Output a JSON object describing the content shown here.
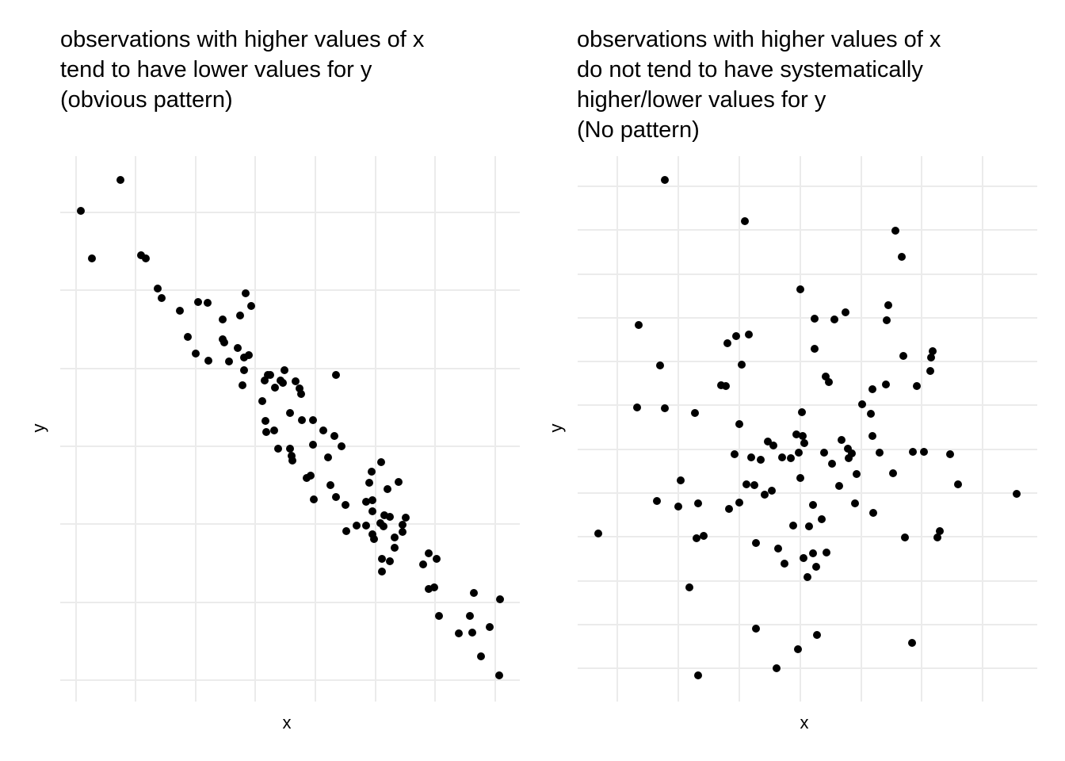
{
  "chart_data": [
    {
      "type": "scatter",
      "title": [
        "observations with higher values of x",
        "tend to have lower values for y",
        "(obvious pattern)"
      ],
      "xlabel": "x",
      "ylabel": "y",
      "color": "#000000",
      "grid": true,
      "xlim": [
        -20,
        560
      ],
      "ylim": [
        -27,
        661
      ],
      "xticks": [
        0,
        75,
        151,
        226,
        302,
        378,
        453,
        529
      ],
      "yticks": [
        0,
        98,
        197,
        295,
        393,
        492,
        590
      ],
      "x": [
        6,
        20,
        56,
        82,
        88,
        103,
        108,
        131,
        141,
        151,
        154,
        166,
        167,
        185,
        185,
        187,
        193,
        204,
        207,
        210,
        212,
        214,
        212,
        218,
        221,
        235,
        238,
        239,
        240,
        242,
        245,
        250,
        251,
        255,
        258,
        261,
        263,
        270,
        270,
        272,
        273,
        277,
        282,
        284,
        285,
        291,
        296,
        299,
        299,
        300,
        312,
        318,
        321,
        326,
        328,
        328,
        335,
        340,
        341,
        354,
        366,
        366,
        370,
        373,
        374,
        374,
        374,
        376,
        384,
        385,
        386,
        386,
        388,
        389,
        393,
        396,
        396,
        402,
        402,
        407,
        412,
        412,
        416,
        438,
        445,
        445,
        452,
        455,
        458,
        483,
        497,
        500,
        502,
        511,
        522,
        534,
        535
      ],
      "y": [
        592,
        532,
        631,
        536,
        532,
        494,
        482,
        466,
        433,
        412,
        477,
        476,
        403,
        455,
        430,
        426,
        402,
        419,
        460,
        372,
        391,
        488,
        407,
        410,
        472,
        352,
        378,
        327,
        313,
        385,
        385,
        315,
        369,
        292,
        378,
        375,
        391,
        337,
        292,
        283,
        277,
        377,
        368,
        361,
        328,
        255,
        258,
        328,
        297,
        228,
        315,
        281,
        246,
        308,
        385,
        231,
        295,
        221,
        188,
        195,
        195,
        225,
        249,
        263,
        213,
        227,
        184,
        178,
        198,
        275,
        153,
        137,
        194,
        208,
        241,
        150,
        206,
        180,
        167,
        250,
        196,
        187,
        205,
        146,
        160,
        115,
        117,
        153,
        81,
        59,
        81,
        60,
        110,
        30,
        67,
        6,
        102
      ]
    },
    {
      "type": "scatter",
      "title": [
        "observations with higher values of x",
        "do not tend to have systematically",
        "higher/lower values for y",
        "(No pattern)"
      ],
      "xlabel": "x",
      "ylabel": "y",
      "color": "#000000",
      "grid": true,
      "xlim": [
        -50,
        530
      ],
      "ylim": [
        -42,
        646
      ],
      "xticks": [
        0,
        77,
        154,
        231,
        308,
        384,
        461
      ],
      "yticks": [
        0,
        55,
        110,
        166,
        221,
        276,
        332,
        387,
        442,
        497,
        553,
        608
      ],
      "x": [
        -24,
        25,
        27,
        50,
        54,
        60,
        60,
        77,
        80,
        91,
        98,
        100,
        102,
        102,
        109,
        131,
        137,
        139,
        141,
        148,
        150,
        154,
        154,
        157,
        161,
        163,
        166,
        169,
        173,
        175,
        175,
        181,
        186,
        190,
        195,
        197,
        201,
        203,
        208,
        211,
        219,
        222,
        226,
        228,
        229,
        231,
        231,
        233,
        234,
        235,
        236,
        240,
        242,
        247,
        247,
        249,
        249,
        251,
        252,
        258,
        261,
        263,
        264,
        267,
        271,
        274,
        280,
        283,
        288,
        291,
        292,
        296,
        300,
        302,
        309,
        320,
        323,
        322,
        322,
        331,
        339,
        340,
        342,
        348,
        351,
        359,
        361,
        363,
        372,
        373,
        378,
        387,
        395,
        396,
        398,
        404,
        407,
        420,
        430,
        504
      ],
      "y": [
        170,
        329,
        433,
        211,
        382,
        616,
        328,
        204,
        237,
        102,
        322,
        164,
        208,
        -9,
        167,
        357,
        356,
        410,
        201,
        270,
        419,
        209,
        308,
        383,
        564,
        232,
        421,
        266,
        231,
        158,
        50,
        263,
        219,
        286,
        224,
        281,
        0,
        151,
        266,
        132,
        265,
        180,
        295,
        24,
        272,
        240,
        478,
        323,
        293,
        139,
        284,
        115,
        179,
        206,
        145,
        403,
        441,
        128,
        42,
        188,
        272,
        368,
        146,
        361,
        258,
        440,
        230,
        288,
        449,
        277,
        265,
        271,
        208,
        245,
        333,
        321,
        196,
        352,
        293,
        272,
        358,
        439,
        458,
        246,
        552,
        519,
        394,
        165,
        32,
        273,
        356,
        273,
        375,
        392,
        400,
        165,
        173,
        270,
        232,
        220
      ]
    }
  ]
}
